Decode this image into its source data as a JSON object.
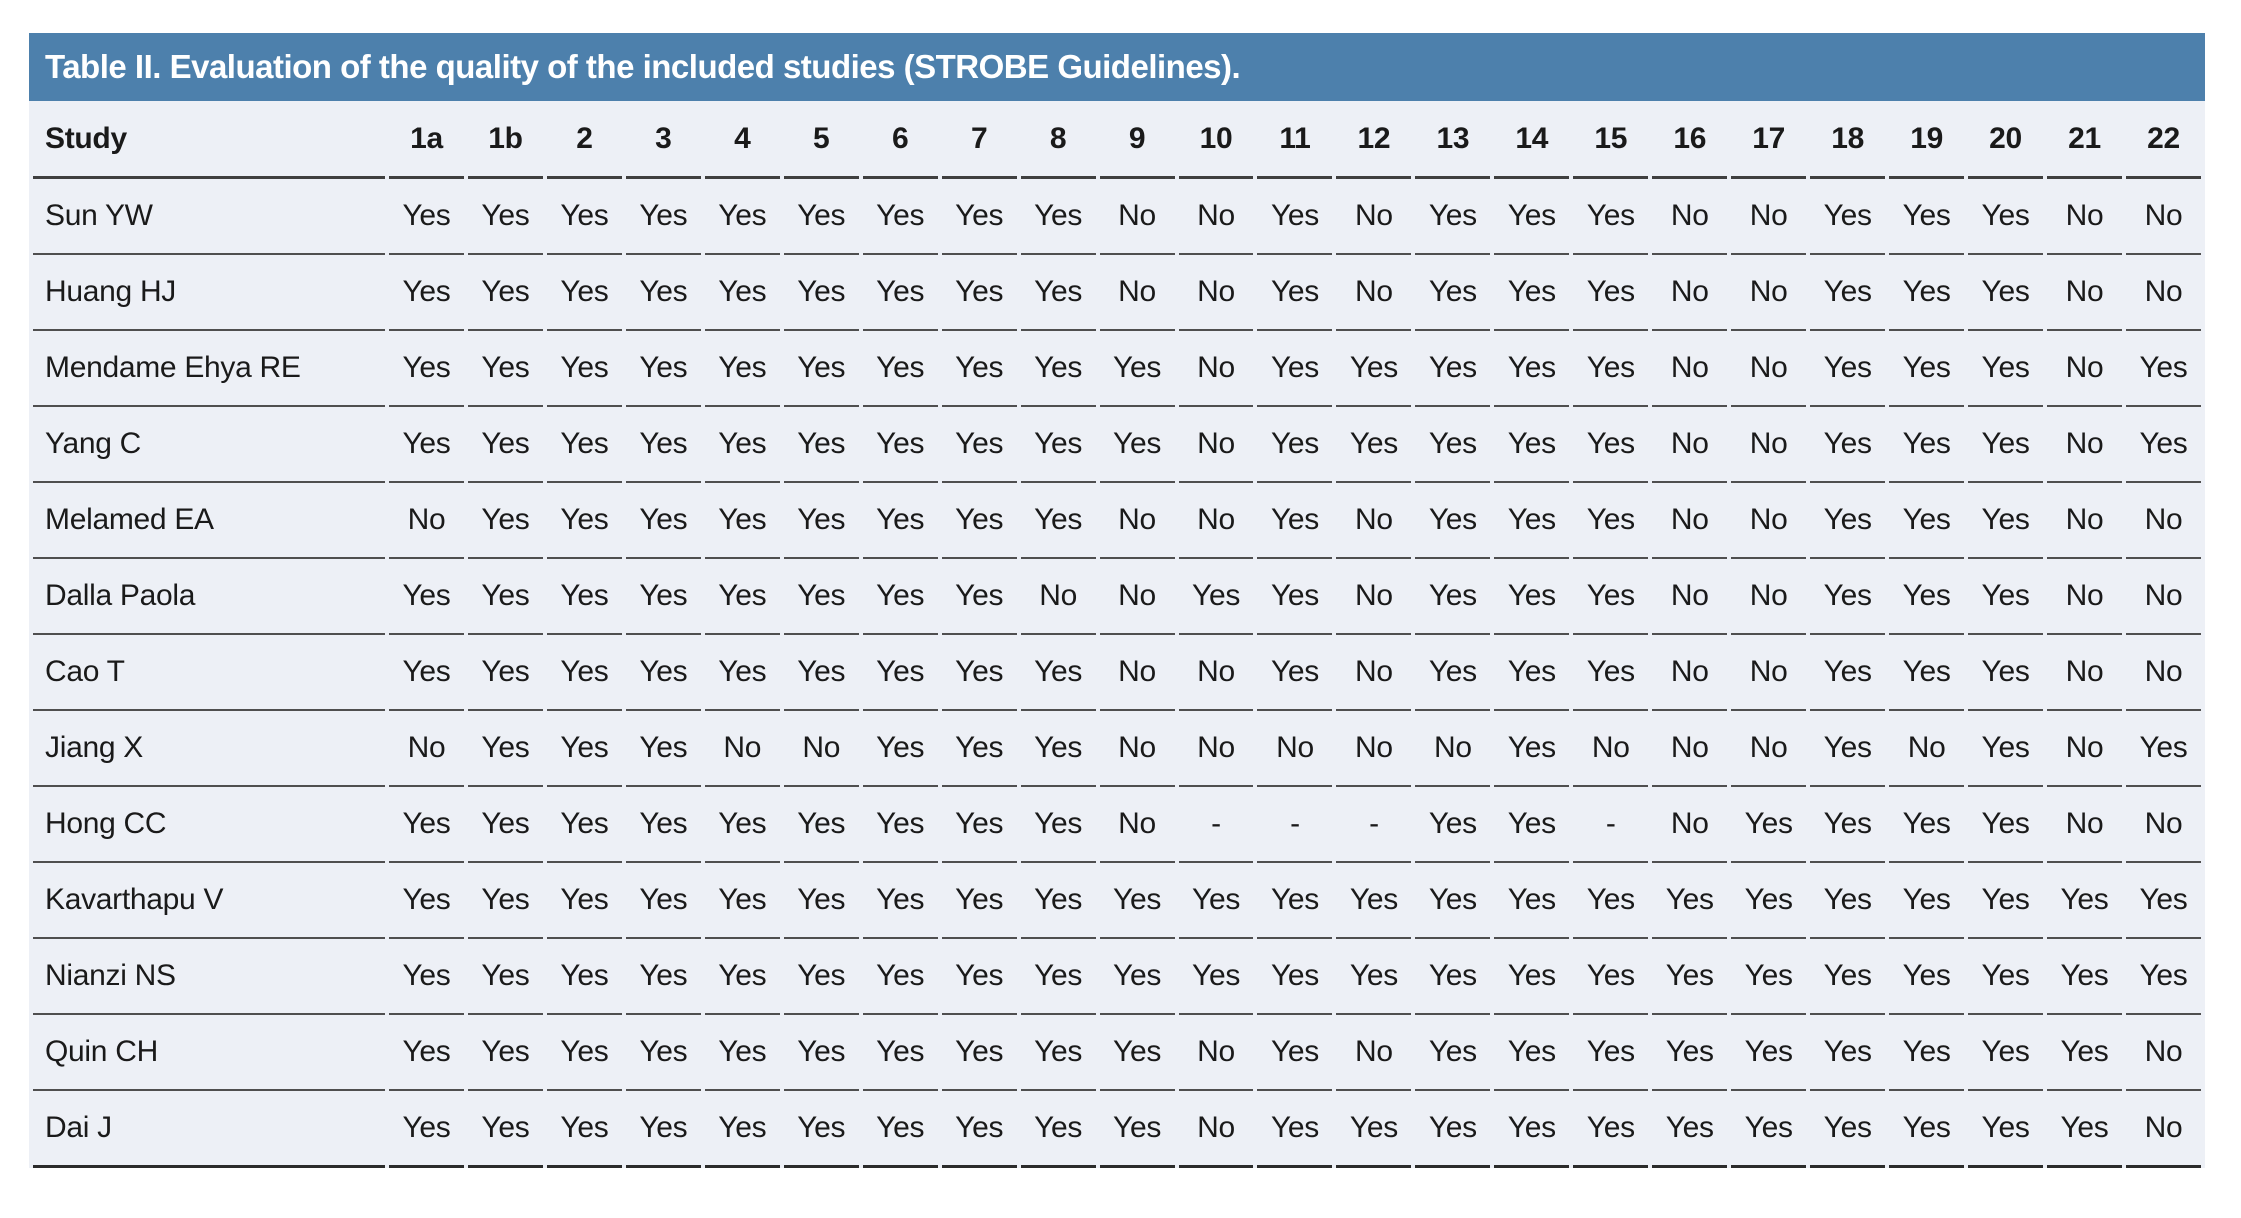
{
  "table": {
    "title": "Table II. Evaluation of the quality of the included studies (STROBE Guidelines).",
    "columns": [
      "Study",
      "1a",
      "1b",
      "2",
      "3",
      "4",
      "5",
      "6",
      "7",
      "8",
      "9",
      "10",
      "11",
      "12",
      "13",
      "14",
      "15",
      "16",
      "17",
      "18",
      "19",
      "20",
      "21",
      "22"
    ],
    "rows": [
      {
        "study": "Sun YW",
        "values": [
          "Yes",
          "Yes",
          "Yes",
          "Yes",
          "Yes",
          "Yes",
          "Yes",
          "Yes",
          "Yes",
          "No",
          "No",
          "Yes",
          "No",
          "Yes",
          "Yes",
          "Yes",
          "No",
          "No",
          "Yes",
          "Yes",
          "Yes",
          "No",
          "No"
        ]
      },
      {
        "study": "Huang HJ",
        "values": [
          "Yes",
          "Yes",
          "Yes",
          "Yes",
          "Yes",
          "Yes",
          "Yes",
          "Yes",
          "Yes",
          "No",
          "No",
          "Yes",
          "No",
          "Yes",
          "Yes",
          "Yes",
          "No",
          "No",
          "Yes",
          "Yes",
          "Yes",
          "No",
          "No"
        ]
      },
      {
        "study": "Mendame Ehya RE",
        "values": [
          "Yes",
          "Yes",
          "Yes",
          "Yes",
          "Yes",
          "Yes",
          "Yes",
          "Yes",
          "Yes",
          "Yes",
          "No",
          "Yes",
          "Yes",
          "Yes",
          "Yes",
          "Yes",
          "No",
          "No",
          "Yes",
          "Yes",
          "Yes",
          "No",
          "Yes"
        ]
      },
      {
        "study": "Yang C",
        "values": [
          "Yes",
          "Yes",
          "Yes",
          "Yes",
          "Yes",
          "Yes",
          "Yes",
          "Yes",
          "Yes",
          "Yes",
          "No",
          "Yes",
          "Yes",
          "Yes",
          "Yes",
          "Yes",
          "No",
          "No",
          "Yes",
          "Yes",
          "Yes",
          "No",
          "Yes"
        ]
      },
      {
        "study": "Melamed EA",
        "values": [
          "No",
          "Yes",
          "Yes",
          "Yes",
          "Yes",
          "Yes",
          "Yes",
          "Yes",
          "Yes",
          "No",
          "No",
          "Yes",
          "No",
          "Yes",
          "Yes",
          "Yes",
          "No",
          "No",
          "Yes",
          "Yes",
          "Yes",
          "No",
          "No"
        ]
      },
      {
        "study": "Dalla Paola",
        "values": [
          "Yes",
          "Yes",
          "Yes",
          "Yes",
          "Yes",
          "Yes",
          "Yes",
          "Yes",
          "No",
          "No",
          "Yes",
          "Yes",
          "No",
          "Yes",
          "Yes",
          "Yes",
          "No",
          "No",
          "Yes",
          "Yes",
          "Yes",
          "No",
          "No"
        ]
      },
      {
        "study": "Cao T",
        "values": [
          "Yes",
          "Yes",
          "Yes",
          "Yes",
          "Yes",
          "Yes",
          "Yes",
          "Yes",
          "Yes",
          "No",
          "No",
          "Yes",
          "No",
          "Yes",
          "Yes",
          "Yes",
          "No",
          "No",
          "Yes",
          "Yes",
          "Yes",
          "No",
          "No"
        ]
      },
      {
        "study": "Jiang X",
        "values": [
          "No",
          "Yes",
          "Yes",
          "Yes",
          "No",
          "No",
          "Yes",
          "Yes",
          "Yes",
          "No",
          "No",
          "No",
          "No",
          "No",
          "Yes",
          "No",
          "No",
          "No",
          "Yes",
          "No",
          "Yes",
          "No",
          "Yes"
        ]
      },
      {
        "study": "Hong CC",
        "values": [
          "Yes",
          "Yes",
          "Yes",
          "Yes",
          "Yes",
          "Yes",
          "Yes",
          "Yes",
          "Yes",
          "No",
          "-",
          "-",
          "-",
          "Yes",
          "Yes",
          "-",
          "No",
          "Yes",
          "Yes",
          "Yes",
          "Yes",
          "No",
          "No"
        ]
      },
      {
        "study": "Kavarthapu V",
        "values": [
          "Yes",
          "Yes",
          "Yes",
          "Yes",
          "Yes",
          "Yes",
          "Yes",
          "Yes",
          "Yes",
          "Yes",
          "Yes",
          "Yes",
          "Yes",
          "Yes",
          "Yes",
          "Yes",
          "Yes",
          "Yes",
          "Yes",
          "Yes",
          "Yes",
          "Yes",
          "Yes"
        ]
      },
      {
        "study": "Nianzi NS",
        "values": [
          "Yes",
          "Yes",
          "Yes",
          "Yes",
          "Yes",
          "Yes",
          "Yes",
          "Yes",
          "Yes",
          "Yes",
          "Yes",
          "Yes",
          "Yes",
          "Yes",
          "Yes",
          "Yes",
          "Yes",
          "Yes",
          "Yes",
          "Yes",
          "Yes",
          "Yes",
          "Yes"
        ]
      },
      {
        "study": "Quin CH",
        "values": [
          "Yes",
          "Yes",
          "Yes",
          "Yes",
          "Yes",
          "Yes",
          "Yes",
          "Yes",
          "Yes",
          "Yes",
          "No",
          "Yes",
          "No",
          "Yes",
          "Yes",
          "Yes",
          "Yes",
          "Yes",
          "Yes",
          "Yes",
          "Yes",
          "Yes",
          "No"
        ]
      },
      {
        "study": "Dai J",
        "values": [
          "Yes",
          "Yes",
          "Yes",
          "Yes",
          "Yes",
          "Yes",
          "Yes",
          "Yes",
          "Yes",
          "Yes",
          "No",
          "Yes",
          "Yes",
          "Yes",
          "Yes",
          "Yes",
          "Yes",
          "Yes",
          "Yes",
          "Yes",
          "Yes",
          "Yes",
          "No"
        ]
      }
    ]
  },
  "colors": {
    "title_bar_blue": "#4d80ac",
    "title_text": "#ffffff",
    "row_background": "#edf0f6",
    "rule_line": "#4f4f4f",
    "text": "#1a1a1a",
    "page_background": "#ffffff"
  }
}
